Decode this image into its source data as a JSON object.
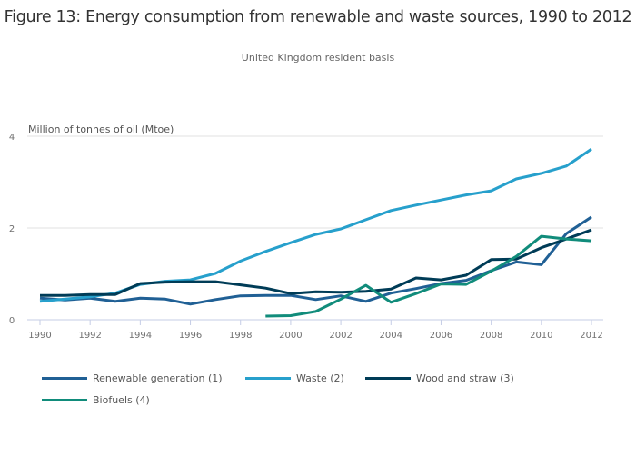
{
  "title": "Figure 13: Energy consumption from renewable and waste sources, 1990 to 2012",
  "subtitle": "United Kingdom resident basis",
  "chart_data": {
    "type": "line",
    "title": "Figure 13: Energy consumption from renewable and waste sources, 1990 to 2012",
    "subtitle": "United Kingdom resident basis",
    "xlabel": "",
    "ylabel": "Million of tonnes of oil (Mtoe)",
    "ylim": [
      0,
      4
    ],
    "xlim": [
      1990,
      2012
    ],
    "yticks": [
      "0",
      "2",
      "4"
    ],
    "xticks": [
      "1990",
      "1992",
      "1994",
      "1996",
      "1998",
      "2000",
      "2002",
      "2004",
      "2006",
      "2008",
      "2010",
      "2012"
    ],
    "grid": true,
    "legend_position": "bottom-left",
    "x": [
      1990,
      1991,
      1992,
      1993,
      1994,
      1995,
      1996,
      1997,
      1998,
      1999,
      2000,
      2001,
      2002,
      2003,
      2004,
      2005,
      2006,
      2007,
      2008,
      2009,
      2010,
      2011,
      2012
    ],
    "series": [
      {
        "name": "Renewable generation (1)",
        "color": "#206095",
        "values": [
          0.47,
          0.43,
          0.47,
          0.4,
          0.47,
          0.45,
          0.34,
          0.44,
          0.52,
          0.53,
          0.53,
          0.44,
          0.52,
          0.4,
          0.58,
          0.68,
          0.79,
          0.86,
          1.07,
          1.26,
          1.2,
          1.88,
          2.24
        ]
      },
      {
        "name": "Waste (2)",
        "color": "#27a0cc",
        "values": [
          0.4,
          0.45,
          0.5,
          0.58,
          0.77,
          0.84,
          0.87,
          1.01,
          1.28,
          1.49,
          1.68,
          1.86,
          1.98,
          2.18,
          2.38,
          2.5,
          2.61,
          2.72,
          2.81,
          3.07,
          3.19,
          3.35,
          3.72
        ]
      },
      {
        "name": "Wood and straw (3)",
        "color": "#003c57",
        "values": [
          0.53,
          0.53,
          0.55,
          0.55,
          0.79,
          0.82,
          0.83,
          0.83,
          0.76,
          0.69,
          0.57,
          0.61,
          0.6,
          0.62,
          0.67,
          0.91,
          0.87,
          0.97,
          1.31,
          1.32,
          1.57,
          1.76,
          1.96
        ]
      },
      {
        "name": "Biofuels (4)",
        "color": "#118c7b",
        "values": [
          null,
          null,
          null,
          null,
          null,
          null,
          null,
          null,
          null,
          0.08,
          0.09,
          0.18,
          0.45,
          0.75,
          0.38,
          0.57,
          0.78,
          0.77,
          1.06,
          1.38,
          1.82,
          1.76,
          1.72
        ]
      }
    ]
  },
  "legend": {
    "items": [
      {
        "label": "Renewable generation (1)",
        "color": "#206095"
      },
      {
        "label": "Waste (2)",
        "color": "#27a0cc"
      },
      {
        "label": "Wood and straw (3)",
        "color": "#003c57"
      },
      {
        "label": "Biofuels (4)",
        "color": "#118c7b"
      }
    ]
  }
}
